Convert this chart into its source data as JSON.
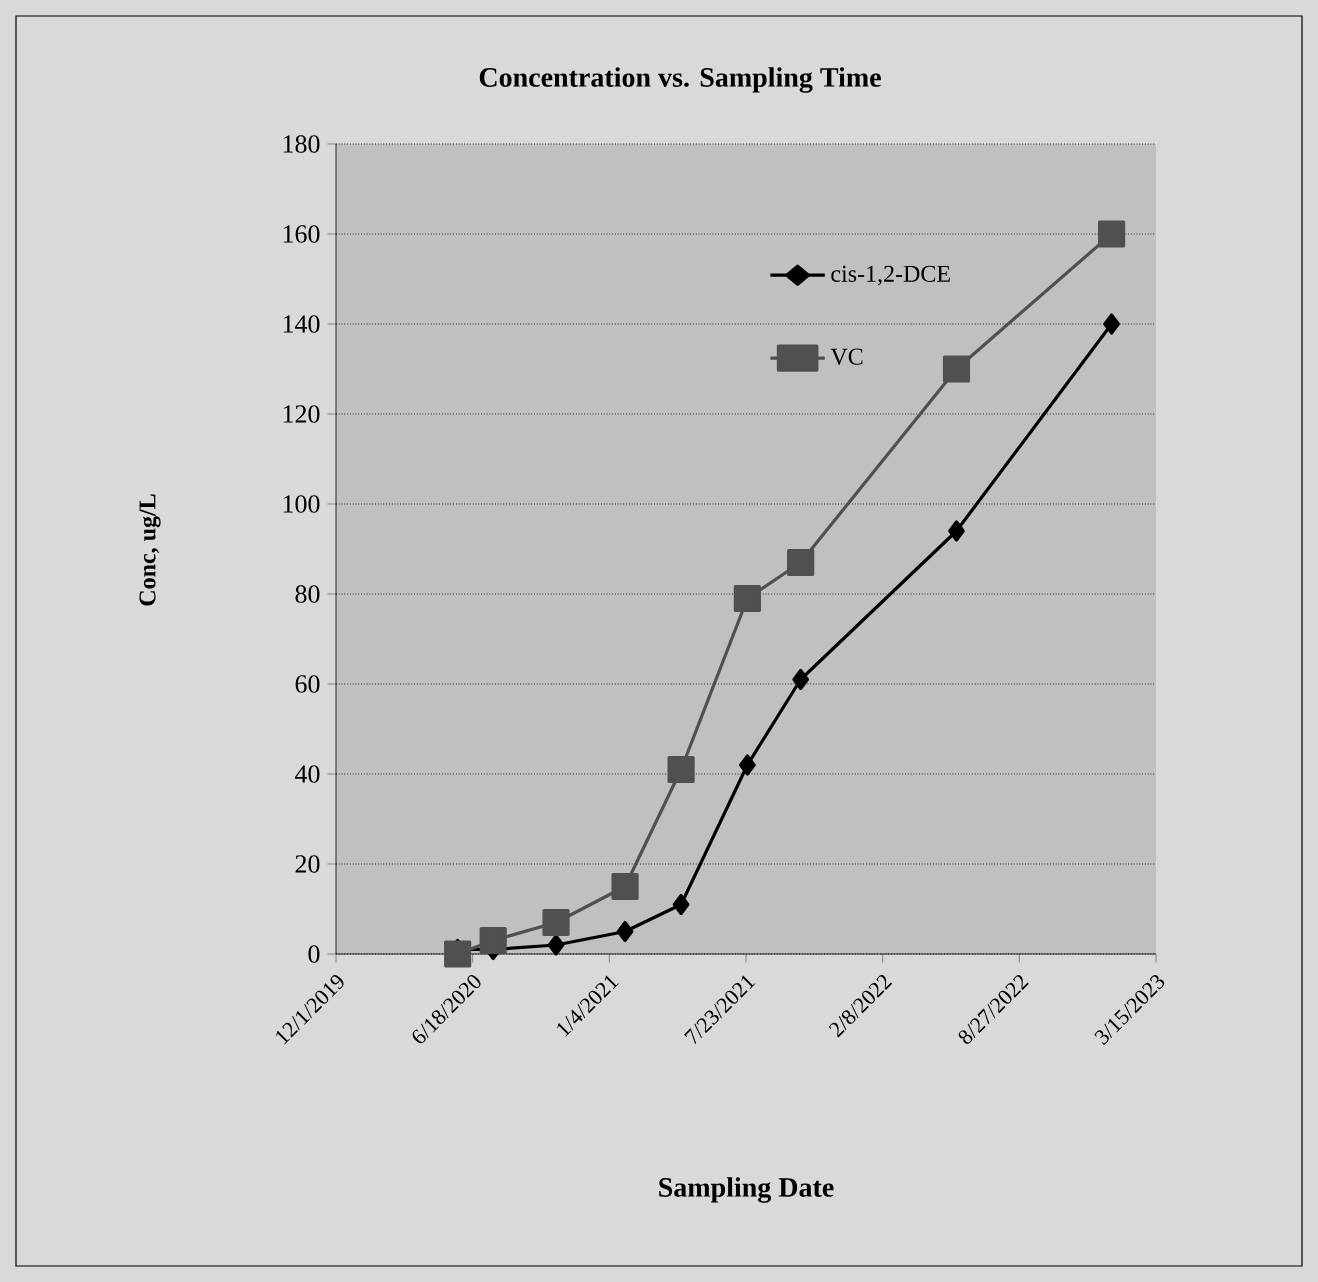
{
  "chart_data": {
    "type": "line",
    "title": "Concentration vs. Sampling Time",
    "xlabel": "Sampling Date",
    "ylabel": "Conc, ug/L",
    "x": [
      "2020-05-27",
      "2020-07-18",
      "2020-10-18",
      "2021-01-27",
      "2021-04-19",
      "2021-07-25",
      "2021-10-11",
      "2022-05-27",
      "2023-01-09"
    ],
    "series": [
      {
        "name": "cis-1,2-DCE",
        "color": "#000000",
        "marker": "diamond",
        "values": [
          1,
          1,
          2,
          5,
          11,
          42,
          61,
          94,
          140
        ]
      },
      {
        "name": "VC",
        "color": "#505050",
        "marker": "square",
        "values": [
          0,
          3,
          7,
          15,
          41,
          79,
          87,
          130,
          160
        ]
      }
    ],
    "xlim": [
      "2019-12-01",
      "2023-03-15"
    ],
    "xticks": [
      {
        "value": "2019-12-01",
        "label": "12/1/2019"
      },
      {
        "value": "2020-06-18",
        "label": "6/18/2020"
      },
      {
        "value": "2021-01-04",
        "label": "1/4/2021"
      },
      {
        "value": "2021-07-23",
        "label": "7/23/2021"
      },
      {
        "value": "2022-02-08",
        "label": "2/8/2022"
      },
      {
        "value": "2022-08-27",
        "label": "8/27/2022"
      },
      {
        "value": "2023-03-15",
        "label": "3/15/2023"
      }
    ],
    "ylim": [
      0,
      180
    ],
    "yticks": [
      0,
      20,
      40,
      60,
      80,
      100,
      120,
      140,
      160,
      180
    ],
    "grid": "y",
    "legend": "top",
    "line_style": "solid"
  }
}
